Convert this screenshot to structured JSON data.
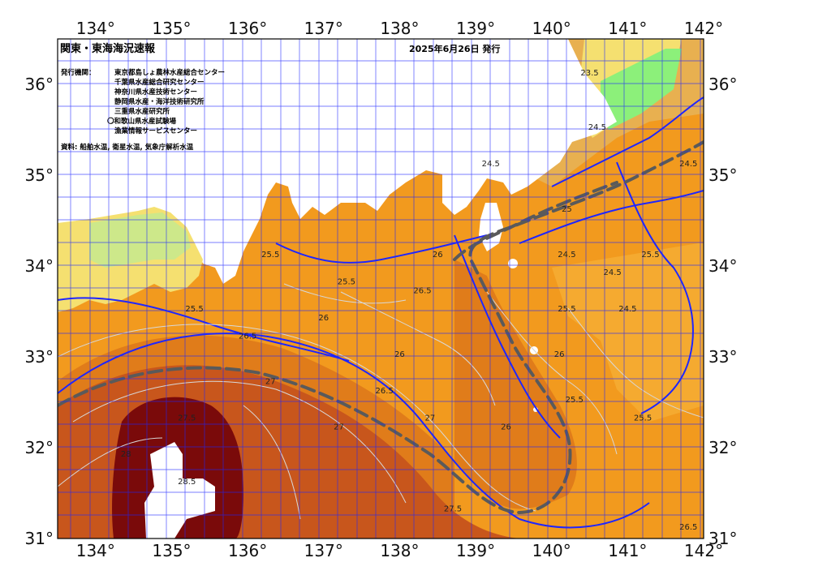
{
  "map": {
    "title": "関東・東海海況速報",
    "issue_date": "2025年6月26日 発行",
    "issuer_label": "発行機関：",
    "issuers": [
      "東京都島しょ農林水産総合センター",
      "千葉県水産総合研究センター",
      "神奈川県水産技術センター",
      "静岡県水産・海洋技術研究所",
      "三重県水産研究所",
      "〇和歌山県水産試験場",
      "漁業情報サービスセンター"
    ],
    "source": "資料: 船舶水温, 衛星水温, 気象庁解析水温",
    "lon_ticks": [
      "134°",
      "135°",
      "136°",
      "137°",
      "138°",
      "139°",
      "140°",
      "141°",
      "142°"
    ],
    "lat_ticks": [
      "36°",
      "35°",
      "34°",
      "33°",
      "32°",
      "31°"
    ],
    "lon_range": [
      133.5,
      142
    ],
    "lat_range": [
      31,
      36.5
    ],
    "isotherm_labels": [
      {
        "t": "23.5",
        "lon": 140.5,
        "lat": 36.1
      },
      {
        "t": "24.5",
        "lon": 140.6,
        "lat": 35.5
      },
      {
        "t": "24.5",
        "lon": 139.2,
        "lat": 35.1
      },
      {
        "t": "24.5",
        "lon": 141.8,
        "lat": 35.1
      },
      {
        "t": "25",
        "lon": 140.2,
        "lat": 34.6
      },
      {
        "t": "24.5",
        "lon": 140.2,
        "lat": 34.1
      },
      {
        "t": "25.5",
        "lon": 141.3,
        "lat": 34.1
      },
      {
        "t": "24.5",
        "lon": 140.8,
        "lat": 33.9
      },
      {
        "t": "25.5",
        "lon": 140.2,
        "lat": 33.5
      },
      {
        "t": "24.5",
        "lon": 141.0,
        "lat": 33.5
      },
      {
        "t": "25.5",
        "lon": 136.3,
        "lat": 34.1
      },
      {
        "t": "25.5",
        "lon": 137.3,
        "lat": 33.8
      },
      {
        "t": "26.5",
        "lon": 138.3,
        "lat": 33.7
      },
      {
        "t": "26",
        "lon": 138.5,
        "lat": 34.1
      },
      {
        "t": "26",
        "lon": 137.0,
        "lat": 33.4
      },
      {
        "t": "26.5",
        "lon": 136.0,
        "lat": 33.2
      },
      {
        "t": "25.5",
        "lon": 135.3,
        "lat": 33.5
      },
      {
        "t": "26",
        "lon": 138.0,
        "lat": 33.0
      },
      {
        "t": "26.5",
        "lon": 137.8,
        "lat": 32.6
      },
      {
        "t": "27",
        "lon": 136.3,
        "lat": 32.7
      },
      {
        "t": "27.5",
        "lon": 135.2,
        "lat": 32.3
      },
      {
        "t": "27",
        "lon": 137.2,
        "lat": 32.2
      },
      {
        "t": "27",
        "lon": 138.4,
        "lat": 32.3
      },
      {
        "t": "26",
        "lon": 139.4,
        "lat": 32.2
      },
      {
        "t": "27.5",
        "lon": 138.7,
        "lat": 31.3
      },
      {
        "t": "25.5",
        "lon": 140.3,
        "lat": 32.5
      },
      {
        "t": "25.5",
        "lon": 141.2,
        "lat": 32.3
      },
      {
        "t": "26",
        "lon": 140.1,
        "lat": 33.0
      },
      {
        "t": "26.5",
        "lon": 141.8,
        "lat": 31.1
      },
      {
        "t": "28",
        "lon": 134.4,
        "lat": 31.9
      },
      {
        "t": "28.5",
        "lon": 135.2,
        "lat": 31.6
      }
    ],
    "colors": {
      "land": "#ffffff",
      "sst_coolest": "#7fff7f",
      "sst_cool": "#ffff80",
      "sst_mid": "#f0b040",
      "sst_warm": "#f29a1e",
      "sst_warmer": "#e07c1a",
      "sst_hot": "#c8561c",
      "sst_hottest": "#7a0a0a",
      "isotherm_major": "#1f26ff",
      "kuroshio_axis": "#5a5a5a"
    }
  }
}
